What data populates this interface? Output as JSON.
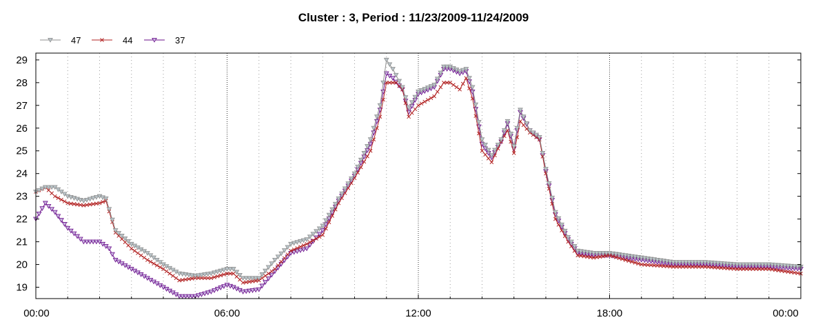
{
  "chart_data": {
    "type": "line",
    "title": "Cluster : 3, Period : 11/23/2009-11/24/2009",
    "xlabel": "",
    "ylabel": "",
    "x_tick_labels": [
      "00:00",
      "06:00",
      "12:00",
      "18:00",
      "00:00"
    ],
    "x_tick_hours": [
      0,
      6,
      12,
      18,
      24
    ],
    "xlim_hours": [
      0,
      24
    ],
    "y_ticks": [
      19,
      20,
      21,
      22,
      23,
      24,
      25,
      26,
      27,
      28,
      29
    ],
    "ylim": [
      18.5,
      29.3
    ],
    "grid": "dotted vertical lines",
    "legend_position": "top-left",
    "series": [
      {
        "name": "47",
        "color": "#8f8f8f",
        "marker": "triangle-down",
        "points": [
          [
            0,
            23.2
          ],
          [
            0.3,
            23.4
          ],
          [
            0.6,
            23.4
          ],
          [
            1,
            23.0
          ],
          [
            1.5,
            22.8
          ],
          [
            2,
            23.0
          ],
          [
            2.2,
            22.9
          ],
          [
            2.5,
            21.5
          ],
          [
            3,
            20.9
          ],
          [
            3.5,
            20.5
          ],
          [
            4,
            20.0
          ],
          [
            4.5,
            19.6
          ],
          [
            5,
            19.5
          ],
          [
            5.5,
            19.6
          ],
          [
            6,
            19.8
          ],
          [
            6.2,
            19.8
          ],
          [
            6.5,
            19.4
          ],
          [
            7,
            19.4
          ],
          [
            7.5,
            20.2
          ],
          [
            8,
            20.9
          ],
          [
            8.5,
            21.1
          ],
          [
            9,
            21.7
          ],
          [
            9.5,
            22.9
          ],
          [
            10,
            24.0
          ],
          [
            10.5,
            25.5
          ],
          [
            10.8,
            27.0
          ],
          [
            11,
            29.0
          ],
          [
            11.2,
            28.6
          ],
          [
            11.5,
            27.8
          ],
          [
            11.7,
            26.9
          ],
          [
            12,
            27.6
          ],
          [
            12.5,
            27.9
          ],
          [
            12.8,
            28.7
          ],
          [
            13,
            28.7
          ],
          [
            13.3,
            28.5
          ],
          [
            13.5,
            28.6
          ],
          [
            13.7,
            27.8
          ],
          [
            14,
            25.5
          ],
          [
            14.3,
            24.8
          ],
          [
            14.6,
            25.5
          ],
          [
            14.8,
            26.3
          ],
          [
            15,
            25.2
          ],
          [
            15.2,
            26.8
          ],
          [
            15.5,
            25.9
          ],
          [
            15.8,
            25.6
          ],
          [
            16,
            24.2
          ],
          [
            16.3,
            22.3
          ],
          [
            16.7,
            21.2
          ],
          [
            17,
            20.6
          ],
          [
            17.5,
            20.5
          ],
          [
            18,
            20.5
          ],
          [
            19,
            20.3
          ],
          [
            20,
            20.1
          ],
          [
            21,
            20.1
          ],
          [
            22,
            20.0
          ],
          [
            23,
            20.0
          ],
          [
            24,
            19.9
          ]
        ]
      },
      {
        "name": "44",
        "color": "#b22222",
        "marker": "x",
        "points": [
          [
            0,
            23.2
          ],
          [
            0.3,
            23.4
          ],
          [
            0.6,
            23.0
          ],
          [
            1,
            22.7
          ],
          [
            1.5,
            22.6
          ],
          [
            2,
            22.7
          ],
          [
            2.2,
            22.8
          ],
          [
            2.5,
            21.4
          ],
          [
            3,
            20.7
          ],
          [
            3.5,
            20.2
          ],
          [
            4,
            19.8
          ],
          [
            4.5,
            19.3
          ],
          [
            5,
            19.4
          ],
          [
            5.5,
            19.4
          ],
          [
            6,
            19.6
          ],
          [
            6.2,
            19.6
          ],
          [
            6.5,
            19.2
          ],
          [
            7,
            19.3
          ],
          [
            7.5,
            19.8
          ],
          [
            8,
            20.6
          ],
          [
            8.5,
            20.9
          ],
          [
            9,
            21.3
          ],
          [
            9.5,
            22.7
          ],
          [
            10,
            23.8
          ],
          [
            10.5,
            25.0
          ],
          [
            10.8,
            26.5
          ],
          [
            11,
            28.0
          ],
          [
            11.3,
            28.0
          ],
          [
            11.5,
            27.7
          ],
          [
            11.7,
            26.5
          ],
          [
            12,
            27.0
          ],
          [
            12.5,
            27.4
          ],
          [
            12.8,
            28.0
          ],
          [
            13,
            28.0
          ],
          [
            13.3,
            27.7
          ],
          [
            13.5,
            28.2
          ],
          [
            13.7,
            27.3
          ],
          [
            14,
            25.0
          ],
          [
            14.3,
            24.5
          ],
          [
            14.6,
            25.4
          ],
          [
            14.8,
            25.9
          ],
          [
            15,
            24.9
          ],
          [
            15.2,
            26.3
          ],
          [
            15.5,
            25.8
          ],
          [
            15.8,
            25.5
          ],
          [
            16,
            24.0
          ],
          [
            16.3,
            22.0
          ],
          [
            16.7,
            21.0
          ],
          [
            17,
            20.4
          ],
          [
            17.5,
            20.3
          ],
          [
            18,
            20.4
          ],
          [
            19,
            20.0
          ],
          [
            20,
            19.9
          ],
          [
            21,
            19.9
          ],
          [
            22,
            19.8
          ],
          [
            23,
            19.8
          ],
          [
            24,
            19.6
          ]
        ]
      },
      {
        "name": "37",
        "color": "#6a0d8a",
        "marker": "triangle-down",
        "points": [
          [
            0,
            22.0
          ],
          [
            0.3,
            22.7
          ],
          [
            0.6,
            22.3
          ],
          [
            1,
            21.6
          ],
          [
            1.5,
            21.0
          ],
          [
            2,
            21.0
          ],
          [
            2.3,
            20.7
          ],
          [
            2.5,
            20.2
          ],
          [
            3,
            19.8
          ],
          [
            3.5,
            19.4
          ],
          [
            4,
            19.0
          ],
          [
            4.5,
            18.6
          ],
          [
            5,
            18.6
          ],
          [
            5.5,
            18.8
          ],
          [
            6,
            19.1
          ],
          [
            6.2,
            19.0
          ],
          [
            6.5,
            18.8
          ],
          [
            7,
            18.9
          ],
          [
            7.5,
            19.7
          ],
          [
            8,
            20.5
          ],
          [
            8.5,
            20.7
          ],
          [
            9,
            21.5
          ],
          [
            9.5,
            22.8
          ],
          [
            10,
            23.9
          ],
          [
            10.5,
            25.3
          ],
          [
            10.8,
            26.8
          ],
          [
            11,
            28.4
          ],
          [
            11.2,
            28.2
          ],
          [
            11.5,
            27.7
          ],
          [
            11.7,
            26.7
          ],
          [
            12,
            27.5
          ],
          [
            12.5,
            27.8
          ],
          [
            12.8,
            28.6
          ],
          [
            13,
            28.6
          ],
          [
            13.3,
            28.4
          ],
          [
            13.5,
            28.5
          ],
          [
            13.7,
            27.6
          ],
          [
            14,
            25.3
          ],
          [
            14.3,
            24.7
          ],
          [
            14.6,
            25.4
          ],
          [
            14.8,
            26.2
          ],
          [
            15,
            25.1
          ],
          [
            15.2,
            26.7
          ],
          [
            15.5,
            25.9
          ],
          [
            15.8,
            25.5
          ],
          [
            16,
            24.1
          ],
          [
            16.3,
            22.2
          ],
          [
            16.7,
            21.1
          ],
          [
            17,
            20.5
          ],
          [
            17.5,
            20.4
          ],
          [
            18,
            20.4
          ],
          [
            19,
            20.2
          ],
          [
            20,
            20.0
          ],
          [
            21,
            20.0
          ],
          [
            22,
            19.9
          ],
          [
            23,
            19.9
          ],
          [
            24,
            19.8
          ]
        ]
      }
    ]
  }
}
